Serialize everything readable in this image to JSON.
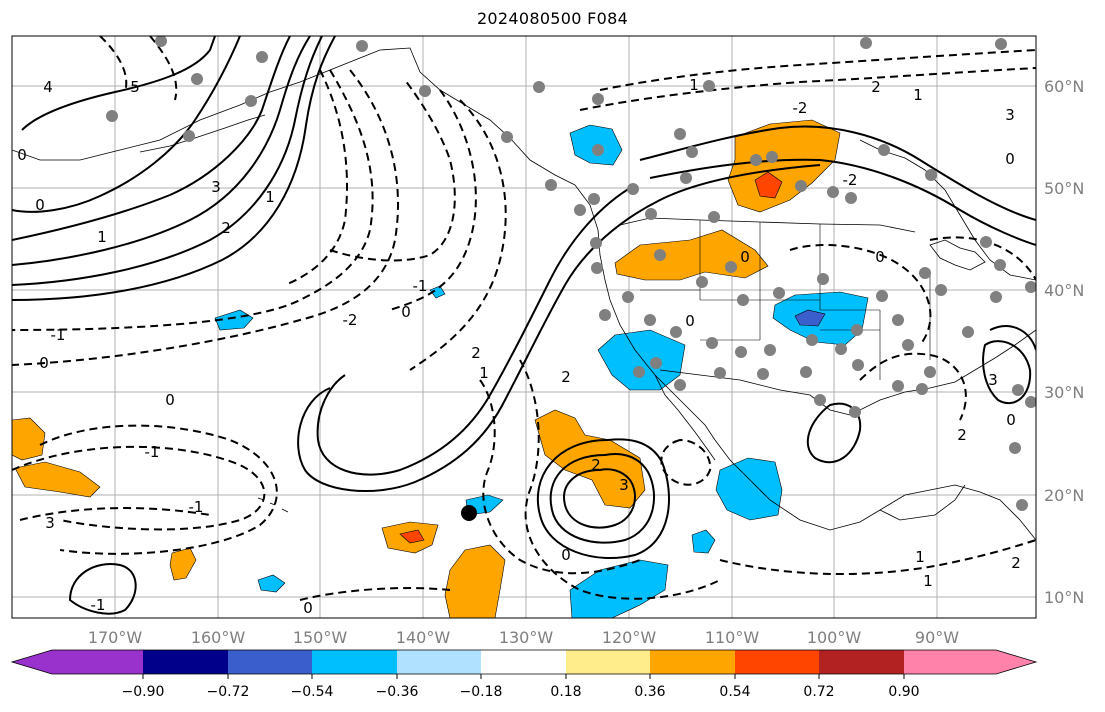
{
  "title": "2024080500 F084",
  "colors": {
    "ocean": "#ffffff",
    "grid": "#b0b0b0",
    "tick_text": "#7f7f7f",
    "contour": "#000000",
    "cyan": "#00bfff",
    "orange": "#ffa500",
    "red": "#ff4500",
    "blue": "#3a5fcd"
  },
  "axes": {
    "lon_labels": [
      "170°W",
      "160°W",
      "150°W",
      "140°W",
      "130°W",
      "120°W",
      "110°W",
      "100°W",
      "90°W"
    ],
    "lat_labels": [
      "60°N",
      "50°N",
      "40°N",
      "30°N",
      "20°N",
      "10°N"
    ]
  },
  "colorbar": {
    "colors": [
      "#9932cc",
      "#00008b",
      "#3a5fcd",
      "#00bfff",
      "#b0e2ff",
      "#ffffff",
      "#ffec8b",
      "#ffa500",
      "#ff4500",
      "#b22222",
      "#ff82ab"
    ],
    "tick_labels": [
      "−0.90",
      "−0.72",
      "−0.54",
      "−0.36",
      "−0.18",
      "0.18",
      "0.36",
      "0.54",
      "0.72",
      "0.90"
    ]
  },
  "contour_labels": [
    "4",
    "5",
    "0",
    "1",
    "3",
    "2",
    "1",
    "0",
    "-1",
    "-2",
    "-1",
    "0",
    "2",
    "1",
    "2",
    "3",
    "-1",
    "0",
    "2",
    "3",
    "-1",
    "-1",
    "0",
    "-2",
    "-2",
    "0",
    "0",
    "0",
    "2",
    "3",
    "0",
    "1",
    "3",
    "2",
    "2",
    "1",
    "1",
    "0",
    "1",
    "0",
    "0"
  ],
  "station_marker": "observation-point"
}
